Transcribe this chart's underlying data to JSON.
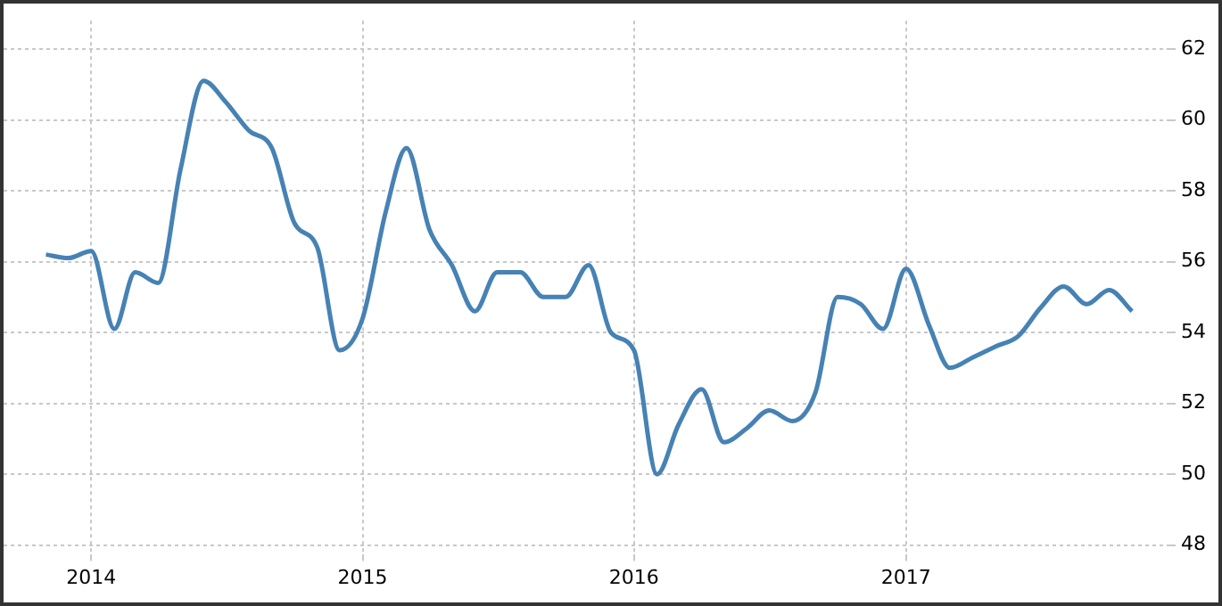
{
  "chart_data": {
    "type": "line",
    "x": [
      "2013-11",
      "2013-12",
      "2014-01",
      "2014-02",
      "2014-03",
      "2014-04",
      "2014-05",
      "2014-06",
      "2014-07",
      "2014-08",
      "2014-09",
      "2014-10",
      "2014-11",
      "2014-12",
      "2015-01",
      "2015-02",
      "2015-03",
      "2015-04",
      "2015-05",
      "2015-06",
      "2015-07",
      "2015-08",
      "2015-09",
      "2015-10",
      "2015-11",
      "2015-12",
      "2016-01",
      "2016-02",
      "2016-03",
      "2016-04",
      "2016-05",
      "2016-06",
      "2016-07",
      "2016-08",
      "2016-09",
      "2016-10",
      "2016-11",
      "2016-12",
      "2017-01",
      "2017-02",
      "2017-03",
      "2017-04",
      "2017-05",
      "2017-06",
      "2017-07",
      "2017-08",
      "2017-09",
      "2017-10",
      "2017-11"
    ],
    "series": [
      {
        "color": "#4682b4",
        "values": [
          56.2,
          56.1,
          56.3,
          54.1,
          55.7,
          55.4,
          58.6,
          61.1,
          60.5,
          59.7,
          59.2,
          57.1,
          56.4,
          53.5,
          54.4,
          57.4,
          59.2,
          56.9,
          55.9,
          54.6,
          55.7,
          55.7,
          55.0,
          55.0,
          55.9,
          54.0,
          53.5,
          50.0,
          51.4,
          52.4,
          50.9,
          51.3,
          51.8,
          51.5,
          52.3,
          55.0,
          54.8,
          54.1,
          55.8,
          54.2,
          53.0,
          53.3,
          53.6,
          53.9,
          54.7,
          55.3,
          54.8,
          55.2,
          54.6
        ]
      }
    ],
    "xlim": [
      "2013-09-05",
      "2017-12-20"
    ],
    "xticks": [
      {
        "value": "2014",
        "label": "2014"
      },
      {
        "value": "2015",
        "label": "2015"
      },
      {
        "value": "2016",
        "label": "2016"
      },
      {
        "value": "2017",
        "label": "2017"
      }
    ],
    "ylim": [
      47.75,
      62.8
    ],
    "yticks": [
      48,
      50,
      52,
      54,
      56,
      58,
      60,
      62
    ],
    "grid": true,
    "legend": false,
    "marker": "none",
    "line_style": "solid"
  }
}
